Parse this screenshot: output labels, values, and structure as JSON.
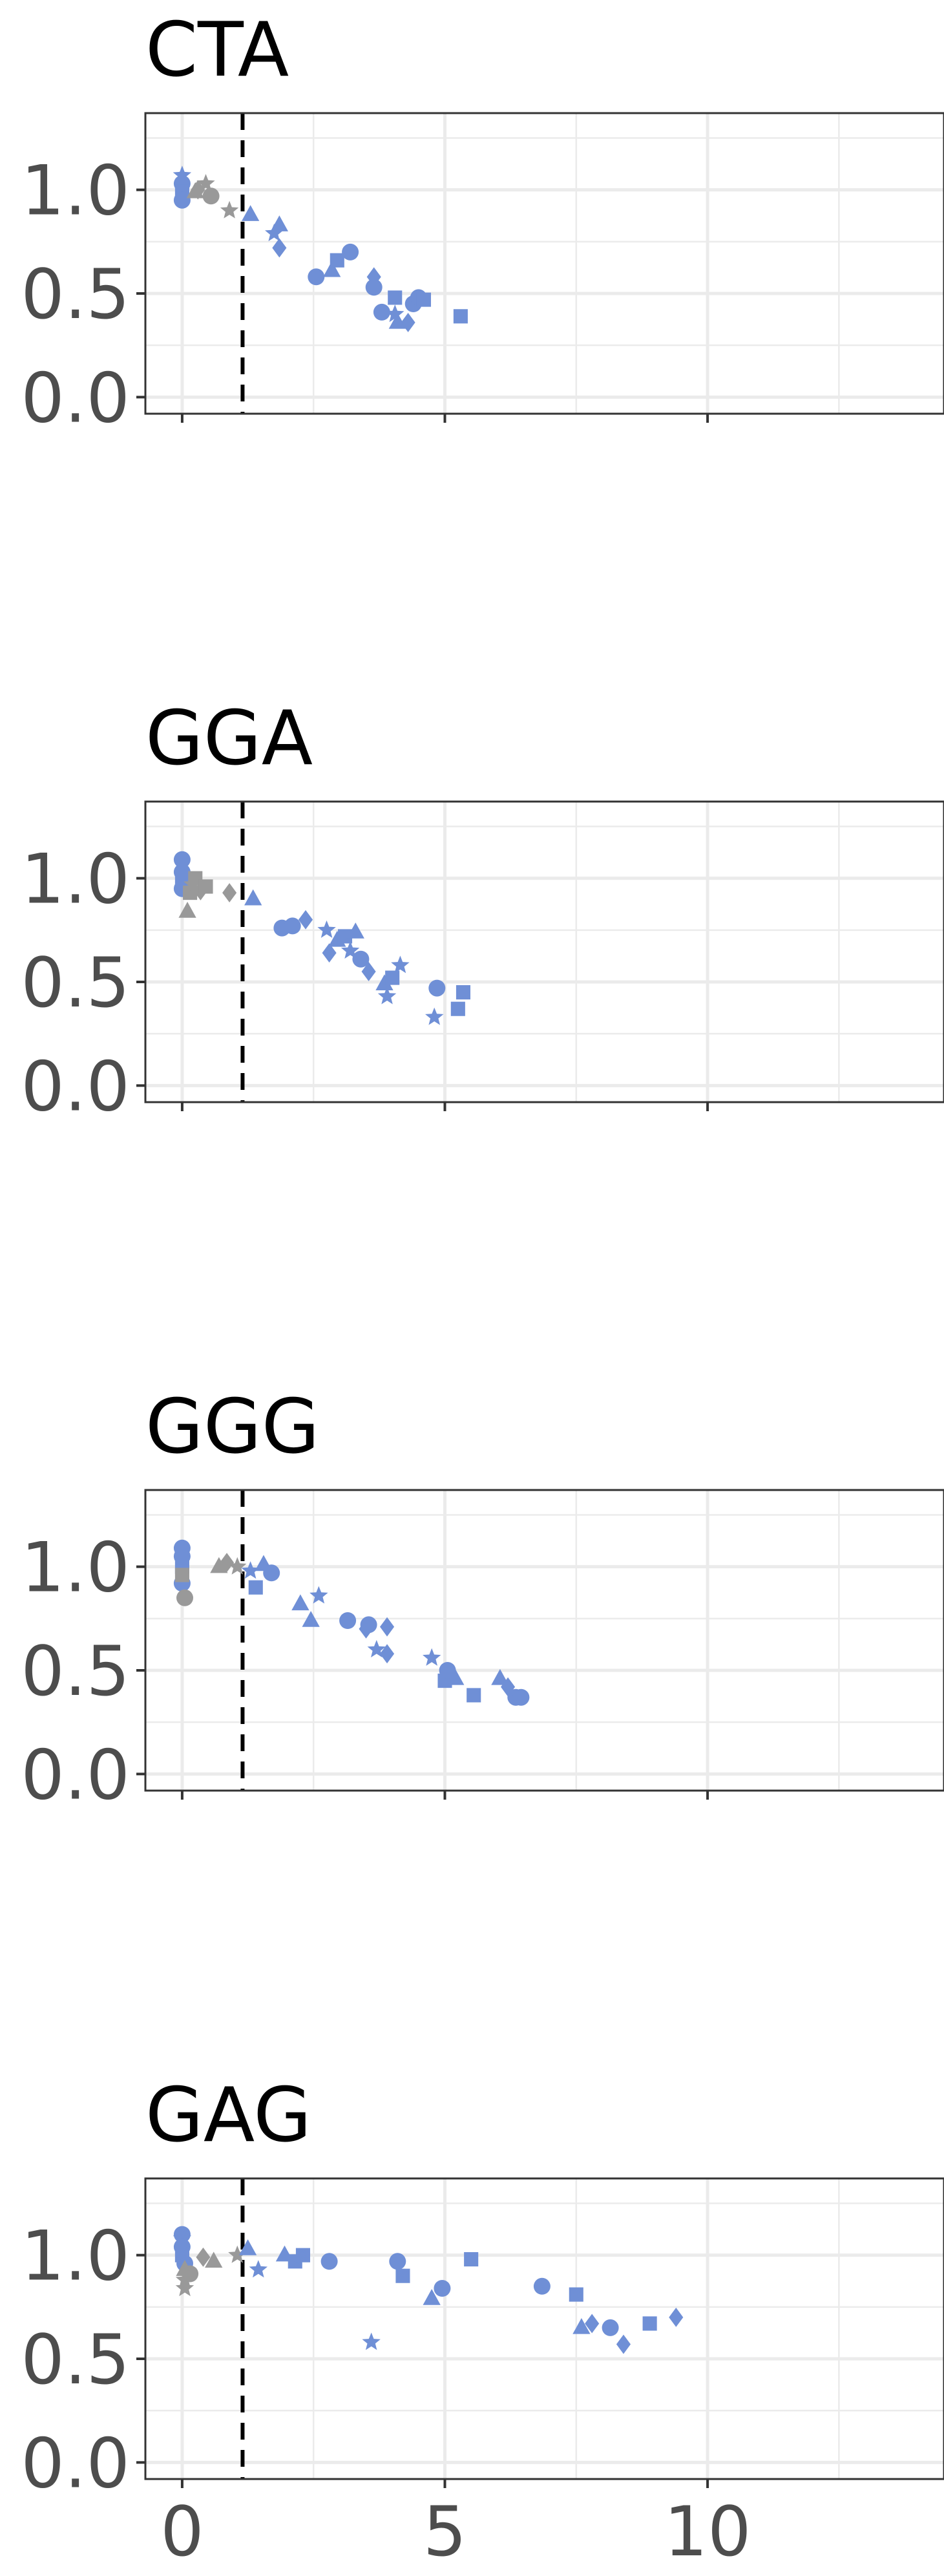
{
  "figure": {
    "colors": {
      "above": "#6f8fd6",
      "below": "#999999",
      "threshold_line": "#000000",
      "grid": "#ebebeb",
      "frame": "#333333"
    }
  },
  "chart_data": [
    {
      "type": "scatter",
      "title": "CTA",
      "xlim": [
        -0.7,
        14.5
      ],
      "ylim": [
        -0.08,
        1.37
      ],
      "xticks": [
        0,
        5,
        10
      ],
      "yticks": [
        0.0,
        0.5,
        1.0
      ],
      "ytick_labels": [
        "0.0",
        "0.5",
        "1.0"
      ],
      "xtick_labels": [],
      "threshold_x": 1.15,
      "points": [
        {
          "x": 0.0,
          "y": 1.07,
          "shape": "star",
          "group": "above"
        },
        {
          "x": 0.0,
          "y": 1.03,
          "shape": "circle",
          "group": "above"
        },
        {
          "x": 0.0,
          "y": 0.99,
          "shape": "square",
          "group": "above"
        },
        {
          "x": 0.0,
          "y": 0.95,
          "shape": "circle",
          "group": "above"
        },
        {
          "x": 0.25,
          "y": 0.99,
          "shape": "triangle",
          "group": "below"
        },
        {
          "x": 0.3,
          "y": 1.0,
          "shape": "diamond",
          "group": "below"
        },
        {
          "x": 0.45,
          "y": 1.03,
          "shape": "star",
          "group": "below"
        },
        {
          "x": 0.55,
          "y": 0.97,
          "shape": "circle",
          "group": "below"
        },
        {
          "x": 0.9,
          "y": 0.9,
          "shape": "star",
          "group": "below"
        },
        {
          "x": 1.3,
          "y": 0.88,
          "shape": "triangle",
          "group": "above"
        },
        {
          "x": 1.75,
          "y": 0.79,
          "shape": "star",
          "group": "above"
        },
        {
          "x": 1.85,
          "y": 0.83,
          "shape": "triangle",
          "group": "above"
        },
        {
          "x": 1.85,
          "y": 0.72,
          "shape": "diamond",
          "group": "above"
        },
        {
          "x": 2.55,
          "y": 0.58,
          "shape": "circle",
          "group": "above"
        },
        {
          "x": 2.85,
          "y": 0.61,
          "shape": "triangle",
          "group": "above"
        },
        {
          "x": 2.95,
          "y": 0.66,
          "shape": "square",
          "group": "above"
        },
        {
          "x": 3.2,
          "y": 0.7,
          "shape": "circle",
          "group": "above"
        },
        {
          "x": 3.65,
          "y": 0.58,
          "shape": "diamond",
          "group": "above"
        },
        {
          "x": 3.65,
          "y": 0.53,
          "shape": "circle",
          "group": "above"
        },
        {
          "x": 3.8,
          "y": 0.41,
          "shape": "circle",
          "group": "above"
        },
        {
          "x": 4.05,
          "y": 0.48,
          "shape": "square",
          "group": "above"
        },
        {
          "x": 4.05,
          "y": 0.4,
          "shape": "star",
          "group": "above"
        },
        {
          "x": 4.1,
          "y": 0.36,
          "shape": "triangle",
          "group": "above"
        },
        {
          "x": 4.3,
          "y": 0.36,
          "shape": "diamond",
          "group": "above"
        },
        {
          "x": 4.4,
          "y": 0.45,
          "shape": "circle",
          "group": "above"
        },
        {
          "x": 4.5,
          "y": 0.48,
          "shape": "circle",
          "group": "above"
        },
        {
          "x": 4.6,
          "y": 0.47,
          "shape": "square",
          "group": "above"
        },
        {
          "x": 5.3,
          "y": 0.39,
          "shape": "square",
          "group": "above"
        }
      ]
    },
    {
      "type": "scatter",
      "title": "GGA",
      "xlim": [
        -0.7,
        14.5
      ],
      "ylim": [
        -0.08,
        1.37
      ],
      "xticks": [
        0,
        5,
        10
      ],
      "yticks": [
        0.0,
        0.5,
        1.0
      ],
      "ytick_labels": [
        "0.0",
        "0.5",
        "1.0"
      ],
      "xtick_labels": [],
      "threshold_x": 1.15,
      "points": [
        {
          "x": 0.0,
          "y": 1.09,
          "shape": "circle",
          "group": "above"
        },
        {
          "x": 0.0,
          "y": 1.03,
          "shape": "circle",
          "group": "above"
        },
        {
          "x": 0.0,
          "y": 0.99,
          "shape": "square",
          "group": "above"
        },
        {
          "x": 0.0,
          "y": 0.95,
          "shape": "circle",
          "group": "above"
        },
        {
          "x": 0.1,
          "y": 0.84,
          "shape": "triangle",
          "group": "below"
        },
        {
          "x": 0.15,
          "y": 0.93,
          "shape": "square",
          "group": "below"
        },
        {
          "x": 0.2,
          "y": 0.97,
          "shape": "star",
          "group": "below"
        },
        {
          "x": 0.25,
          "y": 1.0,
          "shape": "square",
          "group": "below"
        },
        {
          "x": 0.35,
          "y": 0.94,
          "shape": "diamond",
          "group": "below"
        },
        {
          "x": 0.45,
          "y": 0.96,
          "shape": "square",
          "group": "below"
        },
        {
          "x": 0.9,
          "y": 0.93,
          "shape": "diamond",
          "group": "below"
        },
        {
          "x": 1.35,
          "y": 0.9,
          "shape": "triangle",
          "group": "above"
        },
        {
          "x": 1.9,
          "y": 0.76,
          "shape": "circle",
          "group": "above"
        },
        {
          "x": 2.1,
          "y": 0.77,
          "shape": "circle",
          "group": "above"
        },
        {
          "x": 2.35,
          "y": 0.8,
          "shape": "diamond",
          "group": "above"
        },
        {
          "x": 2.75,
          "y": 0.75,
          "shape": "star",
          "group": "above"
        },
        {
          "x": 2.8,
          "y": 0.64,
          "shape": "diamond",
          "group": "above"
        },
        {
          "x": 2.95,
          "y": 0.7,
          "shape": "triangle",
          "group": "above"
        },
        {
          "x": 3.1,
          "y": 0.72,
          "shape": "square",
          "group": "above"
        },
        {
          "x": 3.2,
          "y": 0.65,
          "shape": "star",
          "group": "above"
        },
        {
          "x": 3.3,
          "y": 0.74,
          "shape": "triangle",
          "group": "above"
        },
        {
          "x": 3.4,
          "y": 0.61,
          "shape": "circle",
          "group": "above"
        },
        {
          "x": 3.55,
          "y": 0.55,
          "shape": "diamond",
          "group": "above"
        },
        {
          "x": 3.85,
          "y": 0.49,
          "shape": "triangle",
          "group": "above"
        },
        {
          "x": 3.9,
          "y": 0.43,
          "shape": "star",
          "group": "above"
        },
        {
          "x": 4.0,
          "y": 0.52,
          "shape": "square",
          "group": "above"
        },
        {
          "x": 4.15,
          "y": 0.58,
          "shape": "star",
          "group": "above"
        },
        {
          "x": 4.8,
          "y": 0.33,
          "shape": "star",
          "group": "above"
        },
        {
          "x": 4.85,
          "y": 0.47,
          "shape": "circle",
          "group": "above"
        },
        {
          "x": 5.25,
          "y": 0.37,
          "shape": "square",
          "group": "above"
        },
        {
          "x": 5.35,
          "y": 0.45,
          "shape": "square",
          "group": "above"
        }
      ]
    },
    {
      "type": "scatter",
      "title": "GGG",
      "xlim": [
        -0.7,
        14.5
      ],
      "ylim": [
        -0.08,
        1.37
      ],
      "xticks": [
        0,
        5,
        10
      ],
      "yticks": [
        0.0,
        0.5,
        1.0
      ],
      "ytick_labels": [
        "0.0",
        "0.5",
        "1.0"
      ],
      "xtick_labels": [],
      "threshold_x": 1.15,
      "points": [
        {
          "x": 0.0,
          "y": 1.09,
          "shape": "circle",
          "group": "above"
        },
        {
          "x": 0.0,
          "y": 1.05,
          "shape": "circle",
          "group": "above"
        },
        {
          "x": 0.0,
          "y": 1.0,
          "shape": "square",
          "group": "above"
        },
        {
          "x": 0.0,
          "y": 0.92,
          "shape": "circle",
          "group": "above"
        },
        {
          "x": 0.05,
          "y": 0.85,
          "shape": "circle",
          "group": "below"
        },
        {
          "x": 0.0,
          "y": 0.96,
          "shape": "square",
          "group": "below"
        },
        {
          "x": 0.7,
          "y": 1.0,
          "shape": "triangle",
          "group": "below"
        },
        {
          "x": 0.85,
          "y": 1.02,
          "shape": "diamond",
          "group": "below"
        },
        {
          "x": 1.05,
          "y": 1.0,
          "shape": "star",
          "group": "below"
        },
        {
          "x": 1.3,
          "y": 0.98,
          "shape": "star",
          "group": "above"
        },
        {
          "x": 1.4,
          "y": 0.9,
          "shape": "square",
          "group": "above"
        },
        {
          "x": 1.55,
          "y": 1.01,
          "shape": "triangle",
          "group": "above"
        },
        {
          "x": 1.7,
          "y": 0.97,
          "shape": "circle",
          "group": "above"
        },
        {
          "x": 2.25,
          "y": 0.82,
          "shape": "triangle",
          "group": "above"
        },
        {
          "x": 2.45,
          "y": 0.74,
          "shape": "triangle",
          "group": "above"
        },
        {
          "x": 2.6,
          "y": 0.86,
          "shape": "star",
          "group": "above"
        },
        {
          "x": 3.15,
          "y": 0.74,
          "shape": "circle",
          "group": "above"
        },
        {
          "x": 3.5,
          "y": 0.7,
          "shape": "diamond",
          "group": "above"
        },
        {
          "x": 3.55,
          "y": 0.72,
          "shape": "circle",
          "group": "above"
        },
        {
          "x": 3.7,
          "y": 0.6,
          "shape": "star",
          "group": "above"
        },
        {
          "x": 3.9,
          "y": 0.71,
          "shape": "diamond",
          "group": "above"
        },
        {
          "x": 3.9,
          "y": 0.58,
          "shape": "diamond",
          "group": "above"
        },
        {
          "x": 4.75,
          "y": 0.56,
          "shape": "star",
          "group": "above"
        },
        {
          "x": 5.0,
          "y": 0.45,
          "shape": "square",
          "group": "above"
        },
        {
          "x": 5.05,
          "y": 0.5,
          "shape": "circle",
          "group": "above"
        },
        {
          "x": 5.2,
          "y": 0.46,
          "shape": "triangle",
          "group": "above"
        },
        {
          "x": 5.55,
          "y": 0.38,
          "shape": "square",
          "group": "above"
        },
        {
          "x": 6.05,
          "y": 0.46,
          "shape": "triangle",
          "group": "above"
        },
        {
          "x": 6.2,
          "y": 0.42,
          "shape": "diamond",
          "group": "above"
        },
        {
          "x": 6.35,
          "y": 0.37,
          "shape": "circle",
          "group": "above"
        },
        {
          "x": 6.45,
          "y": 0.37,
          "shape": "circle",
          "group": "above"
        }
      ]
    },
    {
      "type": "scatter",
      "title": "GAG",
      "xlim": [
        -0.7,
        14.5
      ],
      "ylim": [
        -0.08,
        1.37
      ],
      "xticks": [
        0,
        5,
        10
      ],
      "yticks": [
        0.0,
        0.5,
        1.0
      ],
      "ytick_labels": [
        "0.0",
        "0.5",
        "1.0"
      ],
      "xtick_labels": [
        "0",
        "5",
        "10"
      ],
      "threshold_x": 1.15,
      "points": [
        {
          "x": 0.0,
          "y": 1.1,
          "shape": "circle",
          "group": "above"
        },
        {
          "x": 0.0,
          "y": 1.08,
          "shape": "star",
          "group": "above"
        },
        {
          "x": 0.0,
          "y": 1.04,
          "shape": "circle",
          "group": "above"
        },
        {
          "x": 0.0,
          "y": 1.0,
          "shape": "square",
          "group": "above"
        },
        {
          "x": 0.05,
          "y": 0.96,
          "shape": "circle",
          "group": "above"
        },
        {
          "x": 0.05,
          "y": 0.93,
          "shape": "triangle",
          "group": "below"
        },
        {
          "x": 0.05,
          "y": 0.88,
          "shape": "star",
          "group": "below"
        },
        {
          "x": 0.05,
          "y": 0.84,
          "shape": "star",
          "group": "below"
        },
        {
          "x": 0.15,
          "y": 0.91,
          "shape": "circle",
          "group": "below"
        },
        {
          "x": 0.4,
          "y": 0.99,
          "shape": "diamond",
          "group": "below"
        },
        {
          "x": 0.6,
          "y": 0.97,
          "shape": "triangle",
          "group": "below"
        },
        {
          "x": 1.05,
          "y": 1.0,
          "shape": "star",
          "group": "below"
        },
        {
          "x": 1.25,
          "y": 1.03,
          "shape": "triangle",
          "group": "above"
        },
        {
          "x": 1.45,
          "y": 0.93,
          "shape": "star",
          "group": "above"
        },
        {
          "x": 1.95,
          "y": 1.0,
          "shape": "triangle",
          "group": "above"
        },
        {
          "x": 2.15,
          "y": 0.97,
          "shape": "square",
          "group": "above"
        },
        {
          "x": 2.3,
          "y": 1.0,
          "shape": "square",
          "group": "above"
        },
        {
          "x": 2.8,
          "y": 0.97,
          "shape": "circle",
          "group": "above"
        },
        {
          "x": 3.6,
          "y": 0.58,
          "shape": "star",
          "group": "above"
        },
        {
          "x": 4.1,
          "y": 0.97,
          "shape": "circle",
          "group": "above"
        },
        {
          "x": 4.2,
          "y": 0.9,
          "shape": "square",
          "group": "above"
        },
        {
          "x": 4.75,
          "y": 0.79,
          "shape": "triangle",
          "group": "above"
        },
        {
          "x": 4.95,
          "y": 0.84,
          "shape": "circle",
          "group": "above"
        },
        {
          "x": 5.5,
          "y": 0.98,
          "shape": "square",
          "group": "above"
        },
        {
          "x": 6.85,
          "y": 0.85,
          "shape": "circle",
          "group": "above"
        },
        {
          "x": 7.5,
          "y": 0.81,
          "shape": "square",
          "group": "above"
        },
        {
          "x": 7.6,
          "y": 0.65,
          "shape": "triangle",
          "group": "above"
        },
        {
          "x": 7.8,
          "y": 0.67,
          "shape": "diamond",
          "group": "above"
        },
        {
          "x": 8.15,
          "y": 0.65,
          "shape": "circle",
          "group": "above"
        },
        {
          "x": 8.4,
          "y": 0.57,
          "shape": "diamond",
          "group": "above"
        },
        {
          "x": 8.9,
          "y": 0.67,
          "shape": "square",
          "group": "above"
        },
        {
          "x": 9.4,
          "y": 0.7,
          "shape": "diamond",
          "group": "above"
        }
      ]
    }
  ]
}
